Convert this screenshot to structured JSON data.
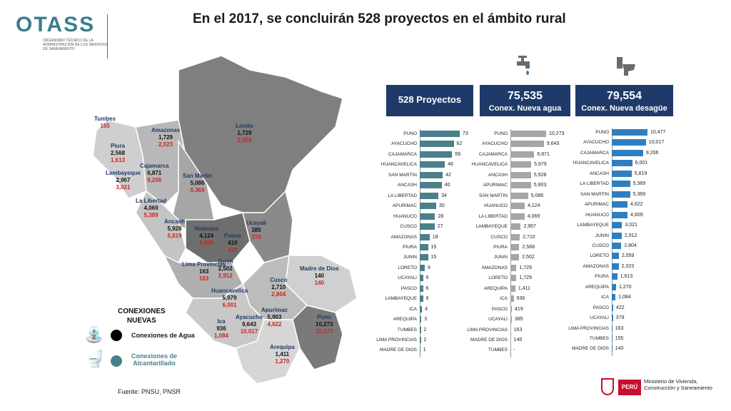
{
  "header": {
    "logo": "OTASS",
    "logo_subtitle": "Organismo Técnico de la Administración de los Servicios de Saneamiento",
    "title": "En el 2017, se concluirán 528 proyectos en el ámbito rural"
  },
  "summary": {
    "projects": "528 Proyectos",
    "water_value": "75,535",
    "water_label": "Conex. Nueva agua",
    "sewer_value": "79,554",
    "sewer_label": "Conex. Nueva desagüe"
  },
  "legend": {
    "title_line1": "CONEXIONES",
    "title_line2": "NUEVAS",
    "water": "Conexiones de Agua",
    "sewer_line1": "Conexiones de",
    "sewer_line2": "Alcantarillado",
    "water_color": "#000000",
    "sewer_color": "#4a7f8c"
  },
  "source": "Fuente: PNSU, PNSR",
  "ministry": {
    "badge": "PERÚ",
    "name": "Ministerio de Vivienda, Construcción y Saneamiento"
  },
  "icons": {
    "water": "faucet-icon",
    "sewer": "toilet-icon"
  },
  "map_labels": [
    {
      "name": "Tumbes",
      "water": "",
      "sewer": "155"
    },
    {
      "name": "Piura",
      "water": "2,568",
      "sewer": "1,613"
    },
    {
      "name": "Lambayeque",
      "water": "2,967",
      "sewer": "3,021"
    },
    {
      "name": "Cajamarca",
      "water": "6,871",
      "sewer": "9,206"
    },
    {
      "name": "Amazonas",
      "water": "1,729",
      "sewer": "2,023"
    },
    {
      "name": "Loreto",
      "water": "1,729",
      "sewer": "2,059"
    },
    {
      "name": "San Martín",
      "water": "5,086",
      "sewer": "5,369"
    },
    {
      "name": "La Libertad",
      "water": "4,069",
      "sewer": "5,389"
    },
    {
      "name": "Ancash",
      "water": "5,928",
      "sewer": "5,819"
    },
    {
      "name": "Huánuco",
      "water": "4,124",
      "sewer": "4,609"
    },
    {
      "name": "Pasco",
      "water": "419",
      "sewer": "422"
    },
    {
      "name": "Ucayali",
      "water": "385",
      "sewer": "379"
    },
    {
      "name": "Junín",
      "water": "2,502",
      "sewer": "2,912"
    },
    {
      "name": "Lima Provincias",
      "water": "163",
      "sewer": "163"
    },
    {
      "name": "Madre de Dios",
      "water": "140",
      "sewer": "140"
    },
    {
      "name": "Cusco",
      "water": "2,710",
      "sewer": "2,804"
    },
    {
      "name": "Huancavelica",
      "water": "5,979",
      "sewer": "6,001"
    },
    {
      "name": "Apurímac",
      "water": "5,903",
      "sewer": "4,622"
    },
    {
      "name": "Ica",
      "water": "936",
      "sewer": "1,084"
    },
    {
      "name": "Ayacucho",
      "water": "9,643",
      "sewer": "10,017"
    },
    {
      "name": "Puno",
      "water": "10,273",
      "sewer": "10,477"
    },
    {
      "name": "Arequipa",
      "water": "1,411",
      "sewer": "1,270"
    }
  ],
  "chart_data": [
    {
      "type": "bar",
      "orientation": "horizontal",
      "series": [
        {
          "name": "528 Proyectos",
          "color": "#4a7f8c"
        }
      ],
      "categories": [
        "PUNO",
        "AYACUCHO",
        "CAJAMARCA",
        "HUANCAVELICA",
        "SAN MARTIN",
        "ANCASH",
        "LA LIBERTAD",
        "APURIMAC",
        "HUANUCO",
        "CUSCO",
        "AMAZONAS",
        "PIURA",
        "JUNIN",
        "LORETO",
        "UCAYALI",
        "PASCO",
        "LAMBAYEQUE",
        "ICA",
        "AREQUIPA",
        "TUMBES",
        "LIMA PROVINCIAS",
        "MADRE DE DIOS"
      ],
      "values": [
        73,
        62,
        59,
        46,
        42,
        40,
        34,
        30,
        28,
        27,
        18,
        15,
        15,
        9,
        6,
        6,
        6,
        4,
        3,
        2,
        2,
        1
      ],
      "labels": [
        "73",
        "62",
        "59",
        "46",
        "42",
        "40",
        "34",
        "30",
        "28",
        "27",
        "18",
        "15",
        "15",
        "9",
        "6",
        "6",
        "6",
        "4",
        "3",
        "2",
        "2",
        "1"
      ],
      "xlim": [
        0,
        73
      ]
    },
    {
      "type": "bar",
      "orientation": "horizontal",
      "series": [
        {
          "name": "Conex. Nueva agua",
          "color": "#a6a6a6"
        }
      ],
      "categories": [
        "PUNO",
        "AYACUCHO",
        "CAJAMARCA",
        "HUANCAVELICA",
        "ANCASH",
        "APURIMAC",
        "SAN MARTIN",
        "HUANUCO",
        "LA LIBERTAD",
        "LAMBAYEQUE",
        "CUSCO",
        "PIURA",
        "JUNIN",
        "AMAZONAS",
        "LORETO",
        "AREQUIPA",
        "ICA",
        "PASCO",
        "UCAYALI",
        "LIMA PROVINCIAS",
        "MADRE DE DIOS",
        "TUMBES"
      ],
      "values": [
        10273,
        9643,
        6871,
        5979,
        5928,
        5903,
        5086,
        4124,
        4069,
        2967,
        2710,
        2568,
        2502,
        1729,
        1729,
        1411,
        936,
        419,
        385,
        163,
        140,
        0
      ],
      "labels": [
        "10,273",
        "9,643",
        "6,871",
        "5,979",
        "5,928",
        "5,903",
        "5,086",
        "4,124",
        "4,069",
        "2,967",
        "2,710",
        "2,568",
        "2,502",
        "1,729",
        "1,729",
        "1,411",
        "936",
        "419",
        "385",
        "163",
        "140",
        "-"
      ],
      "xlim": [
        0,
        10273
      ]
    },
    {
      "type": "bar",
      "orientation": "horizontal",
      "series": [
        {
          "name": "Conex. Nueva desagüe",
          "color": "#2e7fc1"
        }
      ],
      "categories": [
        "PUNO",
        "AYACUCHO",
        "CAJAMARCA",
        "HUANCAVELICA",
        "ANCASH",
        "LA LIBERTAD",
        "SAN MARTIN",
        "APURIMAC",
        "HUANUCO",
        "LAMBAYEQUE",
        "JUNIN",
        "CUSCO",
        "LORETO",
        "AMAZONAS",
        "PIURA",
        "AREQUIPA",
        "ICA",
        "PASCO",
        "UCAYALI",
        "LIMA PROVINCIAS",
        "TUMBES",
        "MADRE DE DIOS"
      ],
      "values": [
        10477,
        10017,
        9206,
        6001,
        5819,
        5389,
        5369,
        4622,
        4609,
        3021,
        2912,
        2804,
        2059,
        2023,
        1613,
        1270,
        1084,
        422,
        379,
        163,
        155,
        140
      ],
      "labels": [
        "10,477",
        "10,017",
        "9,206",
        "6,001",
        "5,819",
        "5,389",
        "5,369",
        "4,622",
        "4,609",
        "3,021",
        "2,912",
        "2,804",
        "2,059",
        "2,023",
        "1,613",
        "1,270",
        "1,084",
        "422",
        "379",
        "163",
        "155",
        "140"
      ],
      "xlim": [
        0,
        10477
      ]
    }
  ]
}
